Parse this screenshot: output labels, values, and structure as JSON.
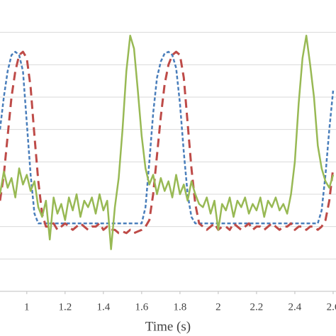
{
  "chart_data": {
    "type": "line",
    "x_label": "Time (s)",
    "x": [
      0.86,
      0.88,
      0.9,
      0.92,
      0.94,
      0.96,
      0.98,
      1.0,
      1.02,
      1.04,
      1.06,
      1.08,
      1.1,
      1.12,
      1.14,
      1.16,
      1.18,
      1.2,
      1.22,
      1.24,
      1.26,
      1.28,
      1.3,
      1.32,
      1.34,
      1.36,
      1.38,
      1.4,
      1.42,
      1.44,
      1.46,
      1.48,
      1.5,
      1.52,
      1.54,
      1.56,
      1.58,
      1.6,
      1.62,
      1.64,
      1.66,
      1.68,
      1.7,
      1.72,
      1.74,
      1.76,
      1.78,
      1.8,
      1.82,
      1.84,
      1.86,
      1.88,
      1.9,
      1.92,
      1.94,
      1.96,
      1.98,
      2.0,
      2.02,
      2.04,
      2.06,
      2.08,
      2.1,
      2.12,
      2.14,
      2.16,
      2.18,
      2.2,
      2.22,
      2.24,
      2.26,
      2.28,
      2.3,
      2.32,
      2.34,
      2.36,
      2.38,
      2.4,
      2.42,
      2.44,
      2.46,
      2.48,
      2.5,
      2.52,
      2.54,
      2.56,
      2.58,
      2.6
    ],
    "series": [
      {
        "color": "#4a7ebb",
        "values": [
          5.0,
          6.0,
          6.8,
          7.3,
          7.4,
          7.3,
          6.8,
          5.2,
          3.6,
          2.4,
          2.1,
          2.1,
          2.1,
          2.1,
          2.1,
          2.1,
          2.1,
          2.1,
          2.1,
          2.1,
          2.1,
          2.1,
          2.1,
          2.1,
          2.1,
          2.1,
          2.1,
          2.1,
          2.1,
          2.1,
          2.1,
          2.1,
          2.1,
          2.1,
          2.1,
          2.1,
          2.1,
          2.1,
          2.6,
          4.0,
          5.5,
          6.6,
          7.1,
          7.35,
          7.4,
          7.3,
          6.9,
          5.8,
          4.3,
          3.0,
          2.3,
          2.1,
          2.1,
          2.1,
          2.1,
          2.1,
          2.1,
          2.1,
          2.1,
          2.1,
          2.1,
          2.1,
          2.1,
          2.1,
          2.1,
          2.1,
          2.1,
          2.1,
          2.1,
          2.1,
          2.1,
          2.1,
          2.1,
          2.1,
          2.1,
          2.1,
          2.1,
          2.1,
          2.1,
          2.1,
          2.1,
          2.1,
          2.1,
          2.1,
          2.5,
          3.6,
          5.0,
          6.2
        ]
      },
      {
        "color": "#be4b48",
        "values": [
          2.8,
          3.6,
          4.8,
          6.0,
          6.8,
          7.3,
          7.4,
          7.2,
          6.3,
          4.8,
          3.4,
          2.4,
          2.0,
          2.0,
          2.1,
          1.9,
          2.0,
          2.1,
          2.0,
          1.9,
          2.0,
          2.1,
          2.0,
          1.9,
          2.0,
          2.0,
          2.1,
          1.9,
          2.0,
          1.9,
          1.9,
          1.8,
          1.85,
          1.8,
          1.9,
          1.8,
          1.85,
          1.9,
          2.0,
          2.2,
          3.0,
          4.2,
          5.4,
          6.4,
          7.0,
          7.3,
          7.4,
          7.3,
          6.6,
          5.2,
          3.8,
          2.7,
          2.1,
          2.0,
          1.9,
          2.0,
          2.1,
          1.9,
          2.0,
          2.0,
          1.9,
          2.1,
          2.0,
          1.9,
          2.0,
          2.1,
          1.9,
          2.0,
          2.0,
          1.9,
          2.0,
          2.1,
          2.0,
          1.9,
          2.0,
          2.0,
          2.1,
          1.9,
          2.0,
          2.0,
          1.9,
          2.0,
          2.0,
          1.9,
          2.0,
          2.2,
          2.8,
          3.8
        ]
      },
      {
        "color": "#98b954",
        "values": [
          3.0,
          3.7,
          3.2,
          3.5,
          2.9,
          3.8,
          3.3,
          3.6,
          3.1,
          3.4,
          2.6,
          2.3,
          2.8,
          1.6,
          2.9,
          2.4,
          2.7,
          2.2,
          2.9,
          2.5,
          3.0,
          2.3,
          2.8,
          2.6,
          2.9,
          2.4,
          3.0,
          2.5,
          2.8,
          1.3,
          2.6,
          3.5,
          5.0,
          6.8,
          7.9,
          7.5,
          6.2,
          4.8,
          3.8,
          3.3,
          3.6,
          3.0,
          3.5,
          3.1,
          3.4,
          2.9,
          3.6,
          3.0,
          3.3,
          2.8,
          3.4,
          3.0,
          2.7,
          2.6,
          2.9,
          2.4,
          2.8,
          1.9,
          2.7,
          2.5,
          2.9,
          2.3,
          2.8,
          2.6,
          2.9,
          2.4,
          2.7,
          2.5,
          2.9,
          2.3,
          2.8,
          2.6,
          2.9,
          2.5,
          2.7,
          2.4,
          3.0,
          4.0,
          5.8,
          7.2,
          7.9,
          7.0,
          6.0,
          4.5,
          3.8,
          3.4,
          3.2,
          3.6
        ]
      }
    ],
    "xlim": [
      0.86,
      2.615
    ],
    "xticks": [
      1,
      1.2,
      1.4,
      1.6,
      1.8,
      2,
      2.2,
      2.4,
      2.6
    ],
    "ylim": [
      0,
      9
    ],
    "yticks": [
      0,
      1,
      2,
      3,
      4,
      5,
      6,
      7,
      8
    ],
    "grid": true
  }
}
